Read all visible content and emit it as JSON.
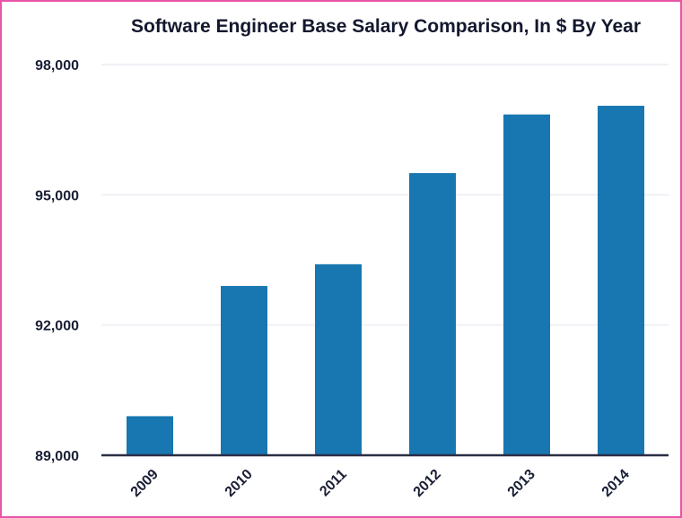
{
  "chart_data": {
    "type": "bar",
    "title": "Software Engineer Base Salary Comparison, In $ By Year",
    "xlabel": "",
    "ylabel": "",
    "categories": [
      "2009",
      "2010",
      "2011",
      "2012",
      "2013",
      "2014"
    ],
    "values": [
      89900,
      92900,
      93400,
      95500,
      96850,
      97050
    ],
    "ylim": [
      89000,
      98000
    ],
    "yticks": [
      89000,
      92000,
      95000,
      98000
    ],
    "ytick_labels": [
      "89,000",
      "92,000",
      "95,000",
      "98,000"
    ],
    "grid": true,
    "legend": "none",
    "colors": {
      "bar": "#1877b0",
      "grid": "#ececf4",
      "axis": "#2a2e45",
      "border": "#e855a8"
    }
  }
}
